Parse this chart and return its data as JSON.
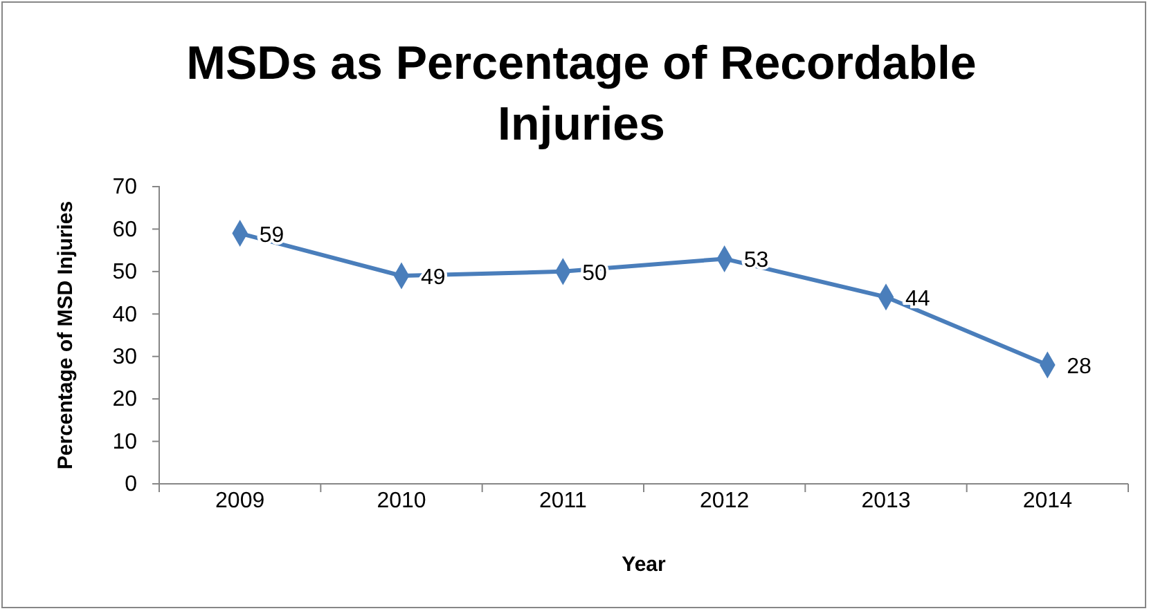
{
  "chart_data": {
    "type": "line",
    "title": "MSDs as Percentage of Recordable Injuries",
    "xlabel": "Year",
    "ylabel": "Percentage of MSD Injuries",
    "categories": [
      "2009",
      "2010",
      "2011",
      "2012",
      "2013",
      "2014"
    ],
    "series": [
      {
        "color": "#4a7ebb",
        "values": [
          59,
          49,
          50,
          53,
          44,
          28
        ]
      }
    ],
    "ylim": [
      0,
      70
    ],
    "yticks": [
      0,
      10,
      20,
      30,
      40,
      50,
      60,
      70
    ],
    "grid": false,
    "data_labels": true,
    "marker": "diamond",
    "line_style": "solid",
    "legend": false
  }
}
